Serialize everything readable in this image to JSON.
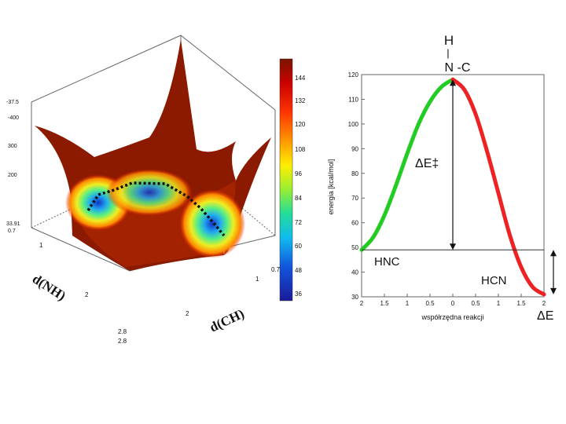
{
  "surface": {
    "colorbar_ticks": [
      "144",
      "132",
      "120",
      "108",
      "96",
      "84",
      "72",
      "60",
      "48",
      "36"
    ],
    "z_ticks": [
      "-37.5",
      "-400",
      "300",
      "200",
      "33.91",
      "0.7"
    ],
    "axis_nh_label": "d(NH)",
    "axis_ch_label": "d(CH)",
    "nh_ticks": [
      "1",
      "2",
      "2.8"
    ],
    "ch_ticks": [
      "0.7",
      "1",
      "2",
      "2.8"
    ]
  },
  "molecule": {
    "top_atom": "H",
    "bond_vertical": "|",
    "bottom_atoms": "N -C"
  },
  "labels": {
    "barrier": "ΔE‡",
    "hnc": "HNC",
    "hcn": "HCN",
    "delta_e": "ΔE"
  },
  "chart_data": {
    "type": "line",
    "xlabel": "współrzędna reakcji",
    "ylabel": "energia [kcal/mol]",
    "x_ticks": [
      "2",
      "1.5",
      "1",
      "0.5",
      "0",
      "0.5",
      "1",
      "1.5",
      "2"
    ],
    "y_ticks": [
      30,
      40,
      50,
      60,
      70,
      80,
      90,
      100,
      110,
      120
    ],
    "ylim": [
      30,
      120
    ],
    "xlim": [
      -2,
      2
    ],
    "series": [
      {
        "color": "#22cc22",
        "x": [
          -2,
          -1.75,
          -1.5,
          -1.25,
          -1,
          -0.75,
          -0.5,
          -0.25,
          0
        ],
        "y": [
          49,
          54,
          63,
          75,
          88,
          100,
          109,
          115,
          118
        ]
      },
      {
        "color": "#ee2222",
        "x": [
          0,
          0.25,
          0.5,
          0.75,
          1,
          1.25,
          1.5,
          1.75,
          2
        ],
        "y": [
          118,
          114,
          104,
          89,
          72,
          55,
          42,
          34,
          31
        ]
      }
    ],
    "reference_energy": 49,
    "barrier_top": 118,
    "product_energy": 31
  }
}
